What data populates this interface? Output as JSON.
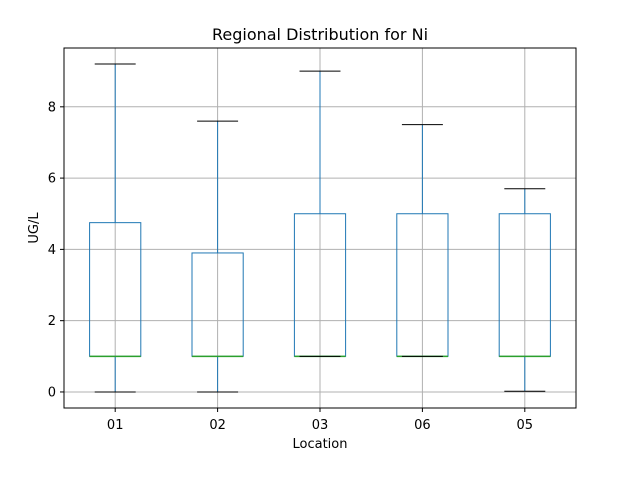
{
  "chart_data": {
    "type": "box",
    "title": "Regional Distribution for Ni",
    "xlabel": "Location",
    "ylabel": "UG/L",
    "ylim": [
      -0.45,
      9.65
    ],
    "yticks": [
      0,
      2,
      4,
      6,
      8
    ],
    "grid": true,
    "categories": [
      "01",
      "02",
      "03",
      "06",
      "05"
    ],
    "boxes": [
      {
        "category": "01",
        "whisker_low": 0.0,
        "q1": 1.0,
        "median": 1.0,
        "q3": 4.75,
        "whisker_high": 9.2
      },
      {
        "category": "02",
        "whisker_low": 0.0,
        "q1": 1.0,
        "median": 1.0,
        "q3": 3.9,
        "whisker_high": 7.6
      },
      {
        "category": "03",
        "whisker_low": 1.0,
        "q1": 1.0,
        "median": 1.0,
        "q3": 5.0,
        "whisker_high": 9.0
      },
      {
        "category": "06",
        "whisker_low": 1.0,
        "q1": 1.0,
        "median": 1.0,
        "q3": 5.0,
        "whisker_high": 7.5
      },
      {
        "category": "05",
        "whisker_low": 0.02,
        "q1": 1.0,
        "median": 1.0,
        "q3": 5.0,
        "whisker_high": 5.7
      }
    ],
    "colors": {
      "box": "#1f77b4",
      "median": "#2ca02c",
      "cap": "#000000",
      "grid": "#b0b0b0"
    }
  }
}
